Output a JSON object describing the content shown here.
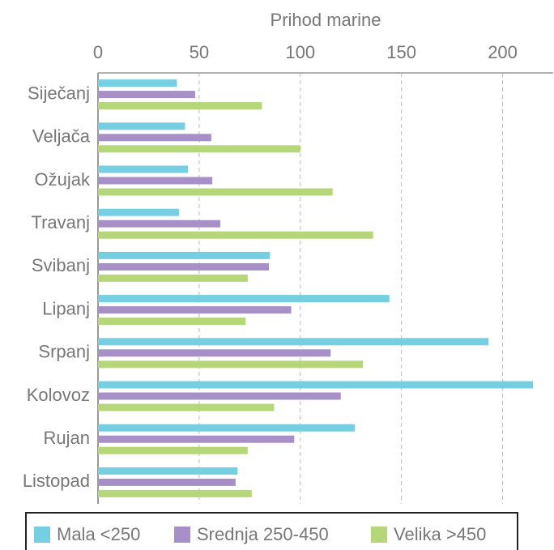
{
  "chart_data": {
    "type": "barh",
    "xlabel": "Prihod marine",
    "categories": [
      "Siječanj",
      "Veljača",
      "Ožujak",
      "Travanj",
      "Svibanj",
      "Lipanj",
      "Srpanj",
      "Kolovoz",
      "Rujan",
      "Listopad"
    ],
    "series": [
      {
        "name": "Mala <250",
        "color": "#76cfe0",
        "values": [
          39,
          43,
          44.5,
          40,
          85,
          144,
          193,
          215,
          127,
          69
        ]
      },
      {
        "name": "Srednja 250-450",
        "color": "#a78fc8",
        "values": [
          48,
          56,
          56.5,
          60.5,
          84.5,
          95.5,
          115,
          120,
          97,
          68
        ]
      },
      {
        "name": "Velika >450",
        "color": "#b5d77a",
        "values": [
          81,
          100,
          116,
          136,
          74,
          73,
          131,
          87,
          74,
          76
        ]
      }
    ],
    "xlim": [
      0,
      225
    ],
    "xticks": [
      0,
      50,
      100,
      150,
      200
    ],
    "grid": true,
    "legend": "bottom"
  }
}
